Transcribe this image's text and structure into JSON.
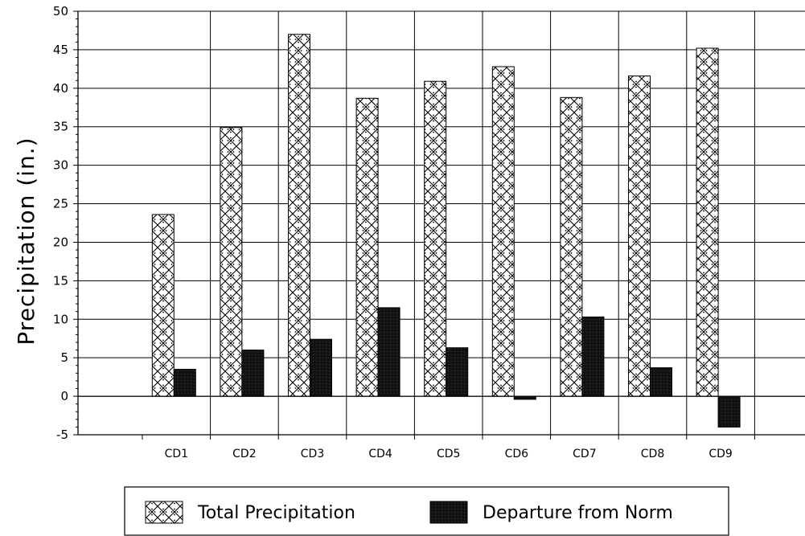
{
  "chart_data": {
    "type": "bar",
    "title": "",
    "xlabel": "",
    "ylabel": "Precipitation (in.)",
    "ylim": [
      -5,
      50
    ],
    "ytick_step": 5,
    "grid": true,
    "legend_position": "bottom",
    "categories": [
      "CD1",
      "CD2",
      "CD3",
      "CD4",
      "CD5",
      "CD6",
      "CD7",
      "CD8",
      "CD9"
    ],
    "series": [
      {
        "name": "Total Precipitation",
        "pattern": "crosshatch-dotted",
        "color": "#ffffff",
        "values": [
          23.6,
          34.9,
          47.0,
          38.7,
          40.9,
          42.8,
          38.8,
          41.6,
          45.2
        ]
      },
      {
        "name": "Departure from Norm",
        "pattern": "solid-dark",
        "color": "#111111",
        "values": [
          3.5,
          6.0,
          7.4,
          11.5,
          6.3,
          -0.4,
          10.3,
          3.7,
          -4.0
        ]
      }
    ]
  }
}
